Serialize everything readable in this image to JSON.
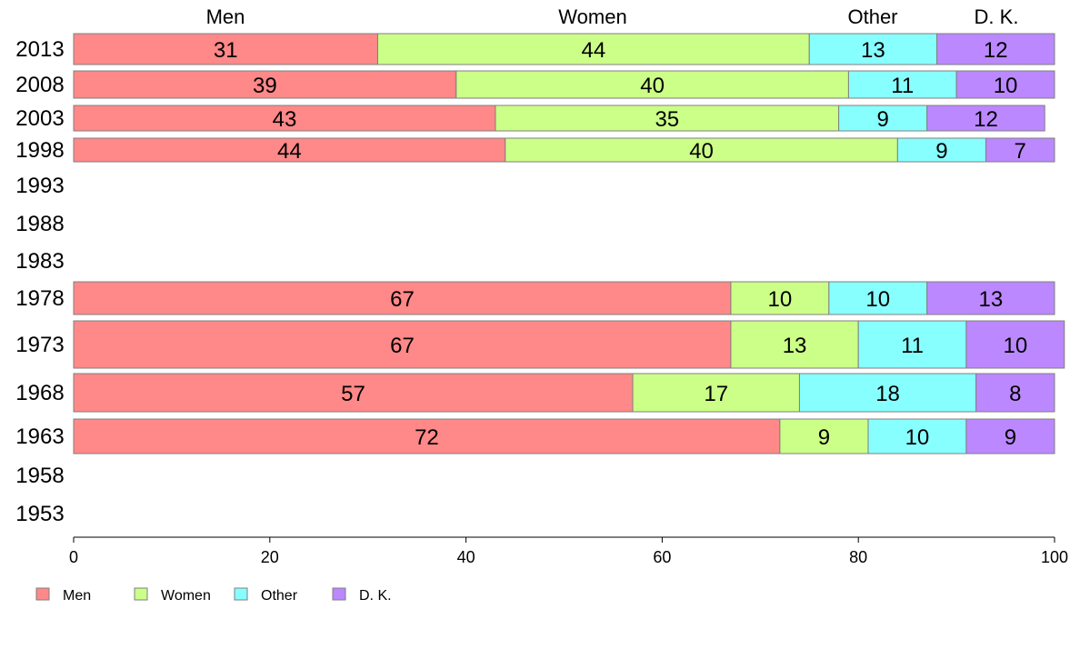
{
  "chart_data": {
    "type": "bar",
    "orientation": "horizontal",
    "stacked": true,
    "categories": [
      "2013",
      "2008",
      "2003",
      "1998",
      "1993",
      "1988",
      "1983",
      "1978",
      "1973",
      "1968",
      "1963",
      "1958",
      "1953"
    ],
    "series": [
      {
        "name": "Men",
        "color": "#ff8888",
        "values": [
          31,
          39,
          43,
          44,
          null,
          null,
          null,
          67,
          67,
          57,
          72,
          null,
          null
        ]
      },
      {
        "name": "Women",
        "color": "#ccff88",
        "values": [
          44,
          40,
          35,
          40,
          null,
          null,
          null,
          10,
          13,
          17,
          9,
          null,
          null
        ]
      },
      {
        "name": "Other",
        "color": "#88ffff",
        "values": [
          13,
          11,
          9,
          9,
          null,
          null,
          null,
          10,
          11,
          18,
          10,
          null,
          null
        ]
      },
      {
        "name": "D. K.",
        "color": "#bb88ff",
        "values": [
          12,
          10,
          12,
          7,
          null,
          null,
          null,
          13,
          10,
          8,
          9,
          null,
          null
        ]
      }
    ],
    "column_headers": [
      "Men",
      "Women",
      "Other",
      "D. K."
    ],
    "xlim": [
      0,
      100
    ],
    "xticks": [
      0,
      20,
      40,
      60,
      80,
      100
    ],
    "legend_position": "bottom-left",
    "grid": false
  }
}
